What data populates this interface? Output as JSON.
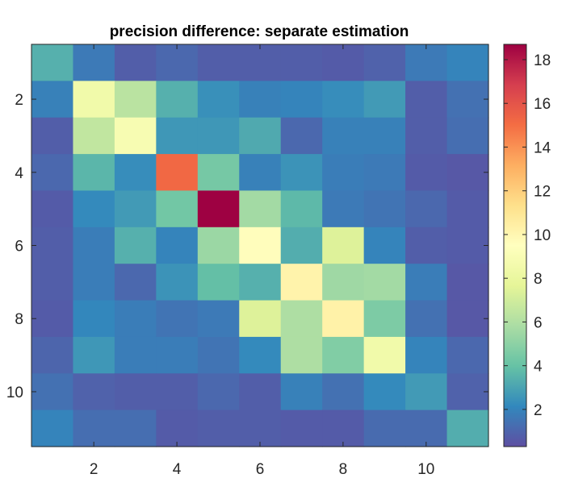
{
  "chart_data": {
    "type": "heatmap",
    "title": "precision difference: separate estimation",
    "xlabel": "",
    "ylabel": "",
    "x_ticks": [
      "2",
      "4",
      "6",
      "8",
      "10"
    ],
    "y_ticks": [
      "2",
      "4",
      "6",
      "8",
      "10"
    ],
    "xlim": [
      0.5,
      11.5
    ],
    "ylim": [
      0.5,
      11.5
    ],
    "colormap": "spectral",
    "colorbar": {
      "range": [
        0.3,
        18.7
      ],
      "ticks": [
        "2",
        "4",
        "6",
        "8",
        "10",
        "12",
        "14",
        "16",
        "18"
      ]
    },
    "matrix": [
      [
        3.4,
        1.7,
        0.8,
        1.1,
        0.8,
        0.8,
        0.8,
        0.7,
        0.9,
        1.7,
        2.0
      ],
      [
        1.9,
        8.5,
        6.3,
        3.4,
        2.4,
        1.9,
        2.0,
        2.3,
        2.7,
        0.8,
        1.4
      ],
      [
        0.8,
        6.5,
        8.9,
        2.6,
        2.6,
        3.2,
        1.1,
        1.9,
        1.9,
        0.8,
        1.3
      ],
      [
        1.1,
        3.6,
        2.3,
        15.2,
        4.4,
        1.9,
        2.5,
        1.8,
        1.7,
        0.7,
        0.6
      ],
      [
        0.7,
        2.2,
        2.7,
        4.3,
        18.7,
        5.6,
        3.7,
        1.7,
        1.5,
        1.1,
        0.7
      ],
      [
        0.8,
        1.8,
        3.4,
        2.0,
        5.4,
        9.6,
        3.3,
        7.4,
        2.0,
        0.8,
        0.7
      ],
      [
        0.8,
        1.8,
        1.1,
        2.5,
        3.9,
        3.4,
        10.2,
        5.5,
        5.6,
        1.8,
        0.6
      ],
      [
        0.7,
        2.1,
        1.8,
        1.5,
        1.7,
        7.4,
        5.9,
        10.3,
        4.6,
        1.4,
        0.6
      ],
      [
        1.0,
        2.6,
        1.8,
        1.8,
        1.5,
        2.2,
        5.9,
        4.7,
        8.5,
        2.0,
        1.1
      ],
      [
        1.4,
        0.9,
        0.8,
        0.8,
        1.1,
        0.8,
        1.9,
        1.4,
        2.2,
        2.7,
        0.9
      ],
      [
        2.0,
        1.3,
        1.3,
        0.7,
        0.8,
        0.8,
        0.7,
        0.7,
        1.2,
        1.2,
        3.3
      ]
    ]
  }
}
